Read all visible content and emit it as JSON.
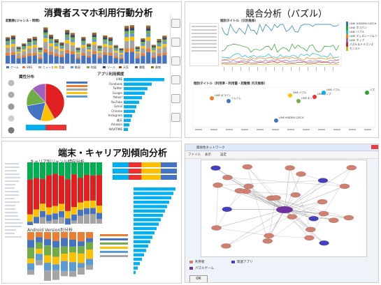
{
  "colors": {
    "accent": "#1f77b4",
    "blue": "#4472c4",
    "orange": "#ed7d31",
    "grey": "#a5a5a5",
    "yellow": "#ffc000",
    "green": "#70ad47",
    "cyan": "#00b0f0",
    "red": "#e02020"
  },
  "panel1": {
    "title": "消費者スマホ利用行動分析",
    "subtitle": "起動数(ジャンル・時間)",
    "pie_title": "属性分布",
    "bar_title": "アプリ利用頻度",
    "legend": [
      "ゲーム",
      "SNS",
      "ニュース",
      "音楽",
      "動画",
      "地図",
      "ツール",
      "天気",
      "書籍",
      "買物"
    ],
    "app_list": [
      "LINE",
      "Facebook",
      "Twitter",
      "Google",
      "Yahoo!",
      "YouTube",
      "Gmail",
      "Chrome",
      "Instagram",
      "楽天",
      "Amazon",
      "NAVITIME"
    ],
    "sidebar_icons": [
      "phone-icon",
      "controller-icon",
      "cart-icon",
      "book-icon",
      "music-icon",
      "globe-icon"
    ]
  },
  "panel2": {
    "title": "競合分析（パズル）",
    "line_subtitle": "個別タイトル（日別推移）",
    "scatter_subtitle": "個別タイトル（利用率・利用量・起動数 月次推移）",
    "legend": [
      "LINE HIDDEN CATCH",
      "LINE ポコパン",
      "LINE バブル",
      "LINE ディズニーツムツム",
      "LINE ポップ",
      "パズル＆ドラゴンズ",
      "モンスト"
    ],
    "scatter_labels": [
      "LINE ポコパン",
      "LINE バブル",
      "LINE ポップ",
      "LINE HIDDEN CATCH",
      "パズドラ",
      "ツムツム"
    ]
  },
  "panel3": {
    "title": "端末・キャリア別傾向分析",
    "subtitle": "キャリア別ジャンル傾向分析",
    "android_title": "Android Version別分析",
    "carriers": [
      "docomo",
      "au",
      "SoftBank",
      "Y!mobile"
    ],
    "devices": [
      "SHARP",
      "SONY",
      "FUJITSU",
      "KYOCERA",
      "Samsung",
      "HUAWEI",
      "ASUS"
    ]
  },
  "panel4": {
    "window_title": "関係性ネットワーク",
    "toolbar": [
      "ファイル",
      "表示",
      "設定"
    ],
    "button": "OK",
    "legend": [
      "利用者",
      "関連アプリ",
      "パズルゲーム"
    ]
  }
}
